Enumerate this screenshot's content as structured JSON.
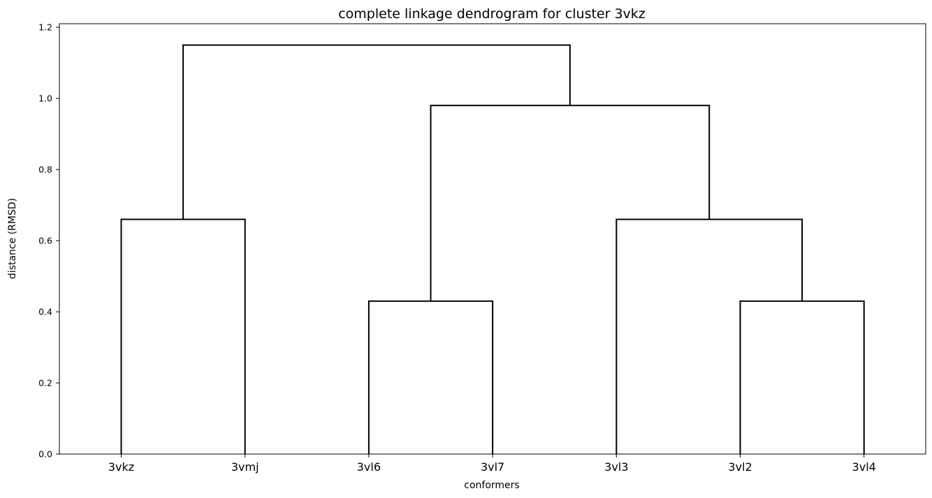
{
  "chart_data": {
    "type": "dendrogram",
    "title": "complete linkage dendrogram for cluster 3vkz",
    "xlabel": "conformers",
    "ylabel": "distance (RMSD)",
    "leaves": [
      "3vkz",
      "3vmj",
      "3vl6",
      "3vl7",
      "3vl3",
      "3vl2",
      "3vl4"
    ],
    "ylim": [
      0,
      1.21
    ],
    "yticks": [
      0.0,
      0.2,
      0.4,
      0.6,
      0.8,
      1.0,
      1.2
    ],
    "ytick_labels": [
      "0.0",
      "0.2",
      "0.4",
      "0.6",
      "0.8",
      "1.0",
      "1.2"
    ],
    "merges": [
      {
        "left": "3vkz",
        "right": "3vmj",
        "height": 0.66
      },
      {
        "left": "3vl6",
        "right": "3vl7",
        "height": 0.43
      },
      {
        "left": "3vl2",
        "right": "3vl4",
        "height": 0.43
      },
      {
        "left": "3vl3",
        "right": "{3vl2,3vl4}",
        "height": 0.66
      },
      {
        "left": "{3vl6,3vl7}",
        "right": "{3vl3,3vl2,3vl4}",
        "height": 0.98
      },
      {
        "left": "{3vkz,3vmj}",
        "right": "{3vl6,3vl7,3vl3,3vl2,3vl4}",
        "height": 1.15
      }
    ],
    "line_color": "#000000",
    "grid": false
  }
}
